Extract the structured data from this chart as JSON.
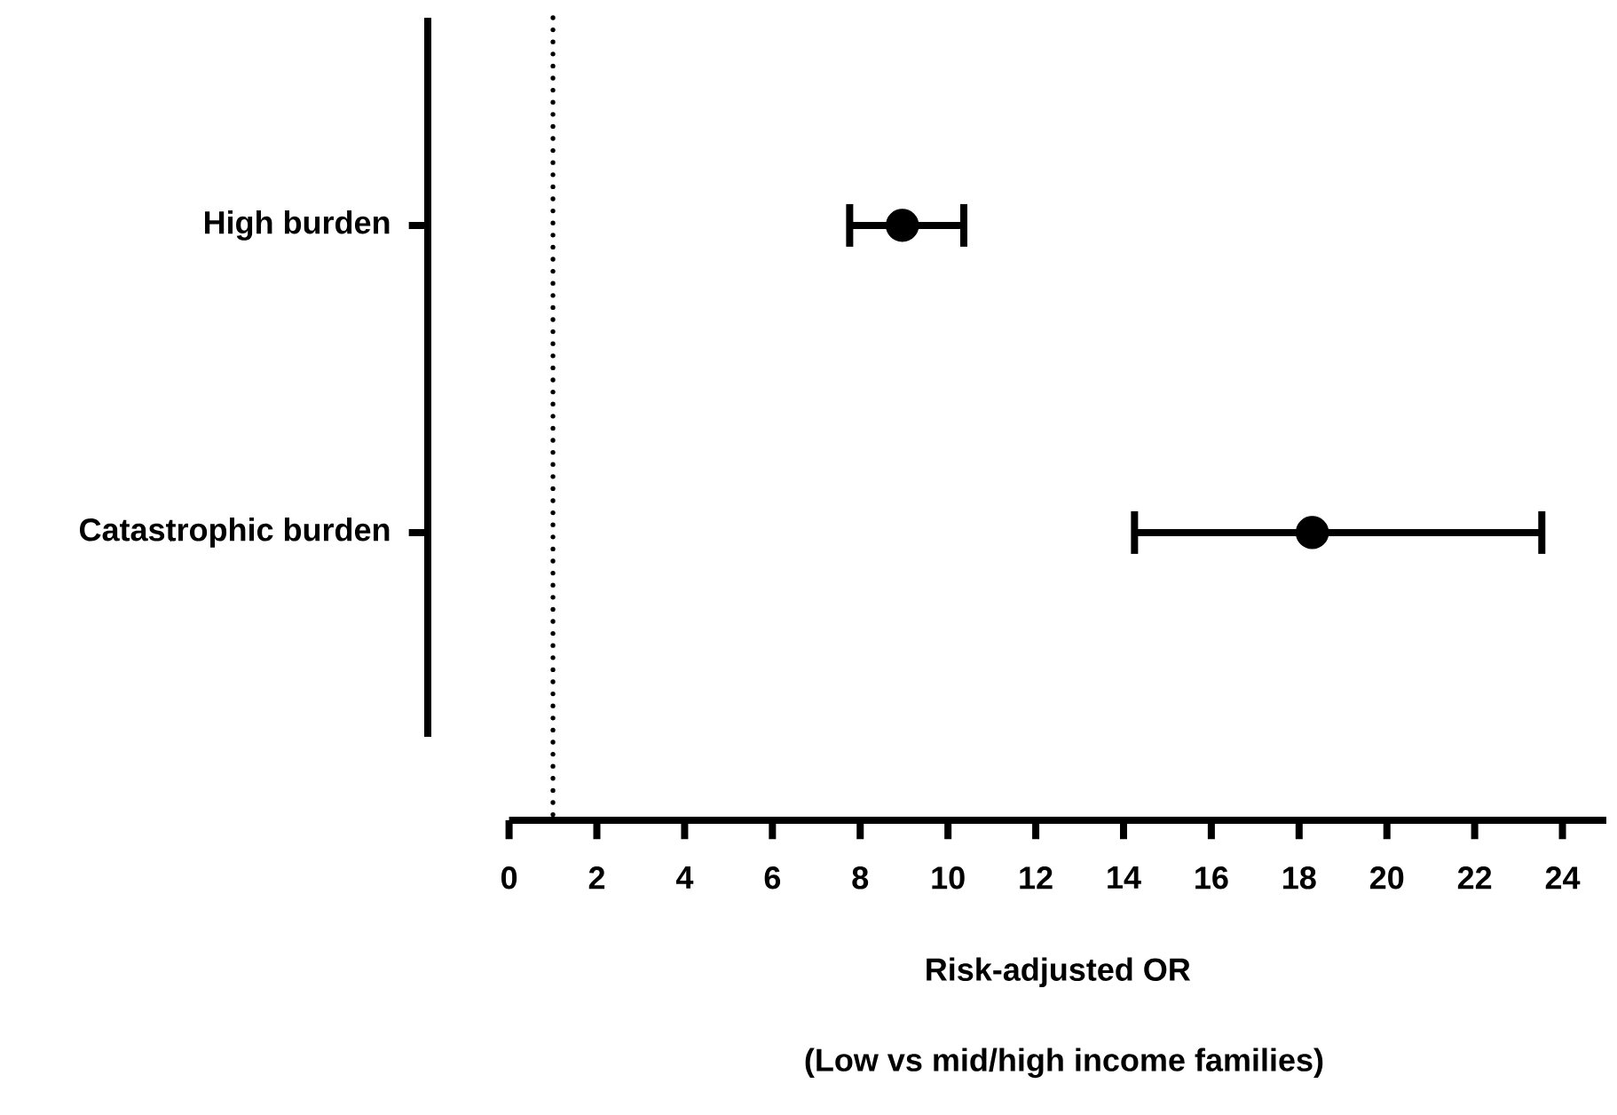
{
  "chart_data": {
    "type": "scatter",
    "orientation": "horizontal",
    "categories": [
      "High burden",
      "Catastrophic burden"
    ],
    "values": [
      8.96,
      18.3
    ],
    "errors": [
      [
        7.76,
        10.36
      ],
      [
        14.25,
        23.53
      ]
    ],
    "color": "#000000",
    "marker": "circle",
    "xlim": [
      0,
      25
    ],
    "xticks": [
      0,
      2,
      4,
      6,
      8,
      10,
      12,
      14,
      16,
      18,
      20,
      22,
      24
    ],
    "xlabel": "Risk-adjusted OR",
    "annotations": [
      "(Low vs mid/high income families)"
    ],
    "ref_lines": [
      {
        "axis": "x",
        "value": 1,
        "line_style": "dotted"
      }
    ],
    "grid": false
  }
}
